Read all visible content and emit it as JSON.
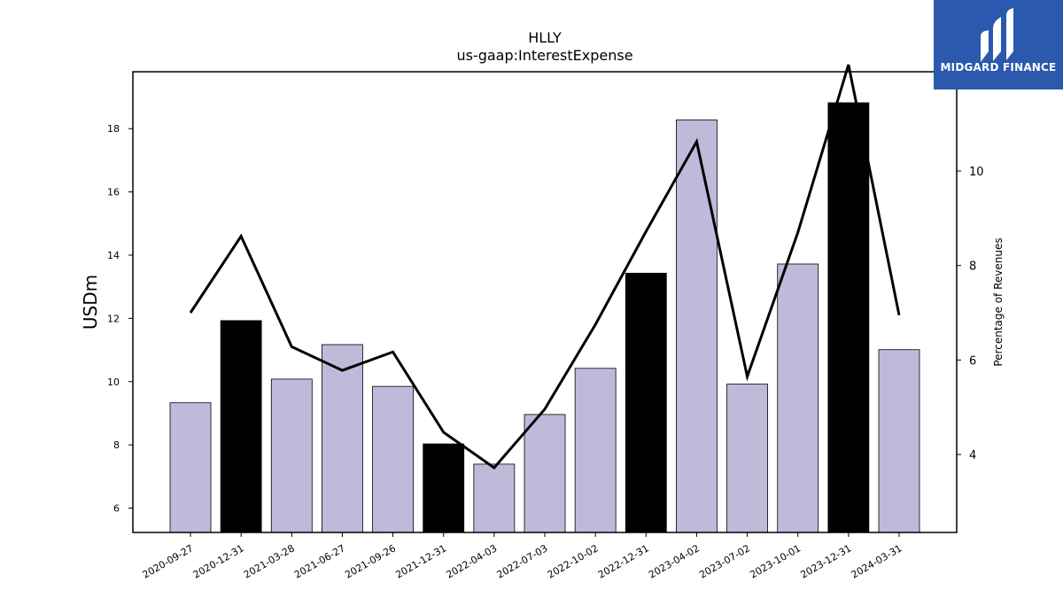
{
  "chart_data": {
    "type": "bar",
    "title": "HLLY",
    "subtitle": "us-gaap:InterestExpense",
    "ylabel": "USDm",
    "y2label": "Percentage of Revenues",
    "categories": [
      "2020-09-27",
      "2020-12-31",
      "2021-03-28",
      "2021-06-27",
      "2021-09-26",
      "2021-12-31",
      "2022-04-03",
      "2022-07-03",
      "2022-10-02",
      "2022-12-31",
      "2023-04-02",
      "2023-07-02",
      "2023-10-01",
      "2023-12-31",
      "2024-03-31"
    ],
    "series": [
      {
        "kind": "bar",
        "axis": "left",
        "values": [
          9.33,
          11.93,
          10.08,
          11.17,
          9.85,
          8.03,
          7.39,
          8.96,
          10.42,
          13.43,
          18.28,
          9.92,
          13.72,
          18.82,
          11.01
        ],
        "highlight": [
          false,
          true,
          false,
          false,
          false,
          true,
          false,
          false,
          false,
          true,
          false,
          false,
          false,
          true,
          false
        ]
      },
      {
        "kind": "line",
        "axis": "right",
        "values": [
          7.0,
          8.62,
          6.28,
          5.78,
          6.17,
          4.47,
          3.72,
          4.96,
          6.75,
          8.72,
          10.62,
          5.65,
          8.7,
          12.25,
          6.95
        ]
      }
    ],
    "ylim": [
      5.23,
      19.8
    ],
    "y2lim": [
      2.35,
      12.1
    ],
    "yticks": [
      6,
      8,
      10,
      12,
      14,
      16,
      18
    ],
    "y2ticks": [
      4,
      6,
      8,
      10
    ],
    "grid": false,
    "colors": {
      "bar": "#bebad9",
      "bar_highlight": "#000000",
      "line": "#000000",
      "edge": "#000000"
    }
  },
  "logo": {
    "text": "MIDGARD FINANCE",
    "background": "#2b59ad"
  }
}
